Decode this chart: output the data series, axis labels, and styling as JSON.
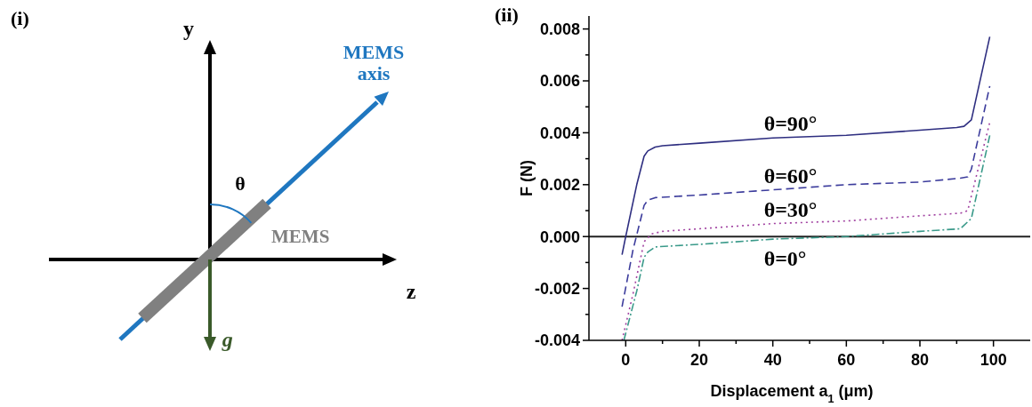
{
  "chart_data": [
    {
      "type": "other",
      "title": "(i)",
      "annotations": [
        "y",
        "z",
        "MEMS axis",
        "θ",
        "MEMS",
        "g⃗"
      ]
    },
    {
      "type": "line",
      "title": "(ii)",
      "xlabel": "Displacement a$_{1}$ (μm)",
      "ylabel": "F (N)",
      "xlim": [
        -10,
        110
      ],
      "xticks": [
        0,
        {
          "value": 10,
          "label": null
        },
        20,
        {
          "value": 30,
          "label": null
        },
        40,
        {
          "value": 50,
          "label": null
        },
        60,
        {
          "value": 70,
          "label": null
        },
        80,
        {
          "value": 90,
          "label": null
        },
        100
      ],
      "ylim": [
        -0.004,
        0.0085
      ],
      "yticks": [
        {
          "value": -0.004,
          "label": "-0.004"
        },
        {
          "value": -0.003,
          "label": null
        },
        {
          "value": -0.002,
          "label": "-0.002"
        },
        {
          "value": -0.001,
          "label": null
        },
        {
          "value": 0,
          "label": "0.000"
        },
        {
          "value": 0.001,
          "label": null
        },
        {
          "value": 0.002,
          "label": "0.002"
        },
        {
          "value": 0.003,
          "label": null
        },
        {
          "value": 0.004,
          "label": "0.004"
        },
        {
          "value": 0.005,
          "label": null
        },
        {
          "value": 0.006,
          "label": "0.006"
        },
        {
          "value": 0.007,
          "label": null
        },
        {
          "value": 0.008,
          "label": "0.008"
        }
      ],
      "grid": false,
      "legend": false,
      "marker": "none",
      "ref_lines": [
        {
          "axis": "y",
          "value": 0,
          "color": "#222222"
        }
      ],
      "series": [
        {
          "name": "θ=90°",
          "color": "#2e2e80",
          "line_style": "solid",
          "x": [
            -1,
            0,
            3,
            5,
            6,
            8,
            10,
            20,
            40,
            60,
            80,
            90,
            92,
            94,
            99
          ],
          "values": [
            -0.0007,
            0.0,
            0.002,
            0.0031,
            0.0033,
            0.00345,
            0.0035,
            0.0036,
            0.0038,
            0.0039,
            0.0041,
            0.0042,
            0.00425,
            0.0045,
            0.0077
          ]
        },
        {
          "name": "θ=60°",
          "color": "#3c3c9c",
          "line_style": "dashed",
          "x": [
            -1,
            2,
            5,
            6,
            8,
            20,
            40,
            60,
            80,
            91,
            93,
            94,
            99
          ],
          "values": [
            -0.0027,
            -0.0005,
            0.0012,
            0.0014,
            0.0015,
            0.0016,
            0.0018,
            0.002,
            0.0021,
            0.00225,
            0.0023,
            0.0026,
            0.0058
          ]
        },
        {
          "name": "θ=30°",
          "color": "#a040a0",
          "line_style": "dotted",
          "x": [
            -1,
            2,
            5,
            7,
            10,
            20,
            40,
            60,
            80,
            91,
            93,
            99
          ],
          "values": [
            -0.004,
            -0.0022,
            -0.0002,
            0.0001,
            0.0002,
            0.0003,
            0.0005,
            0.0006,
            0.0008,
            0.0009,
            0.001,
            0.0044
          ]
        },
        {
          "name": "θ=0°",
          "color": "#3a9a8a",
          "line_style": "dashdot",
          "x": [
            -0.5,
            3,
            5,
            6,
            8,
            20,
            40,
            60,
            80,
            91,
            94,
            99
          ],
          "values": [
            -0.004,
            -0.0021,
            -0.0008,
            -0.0006,
            -0.0004,
            -0.0003,
            -0.0001,
            0.0,
            0.0002,
            0.0003,
            0.0007,
            0.0039
          ]
        }
      ]
    }
  ]
}
